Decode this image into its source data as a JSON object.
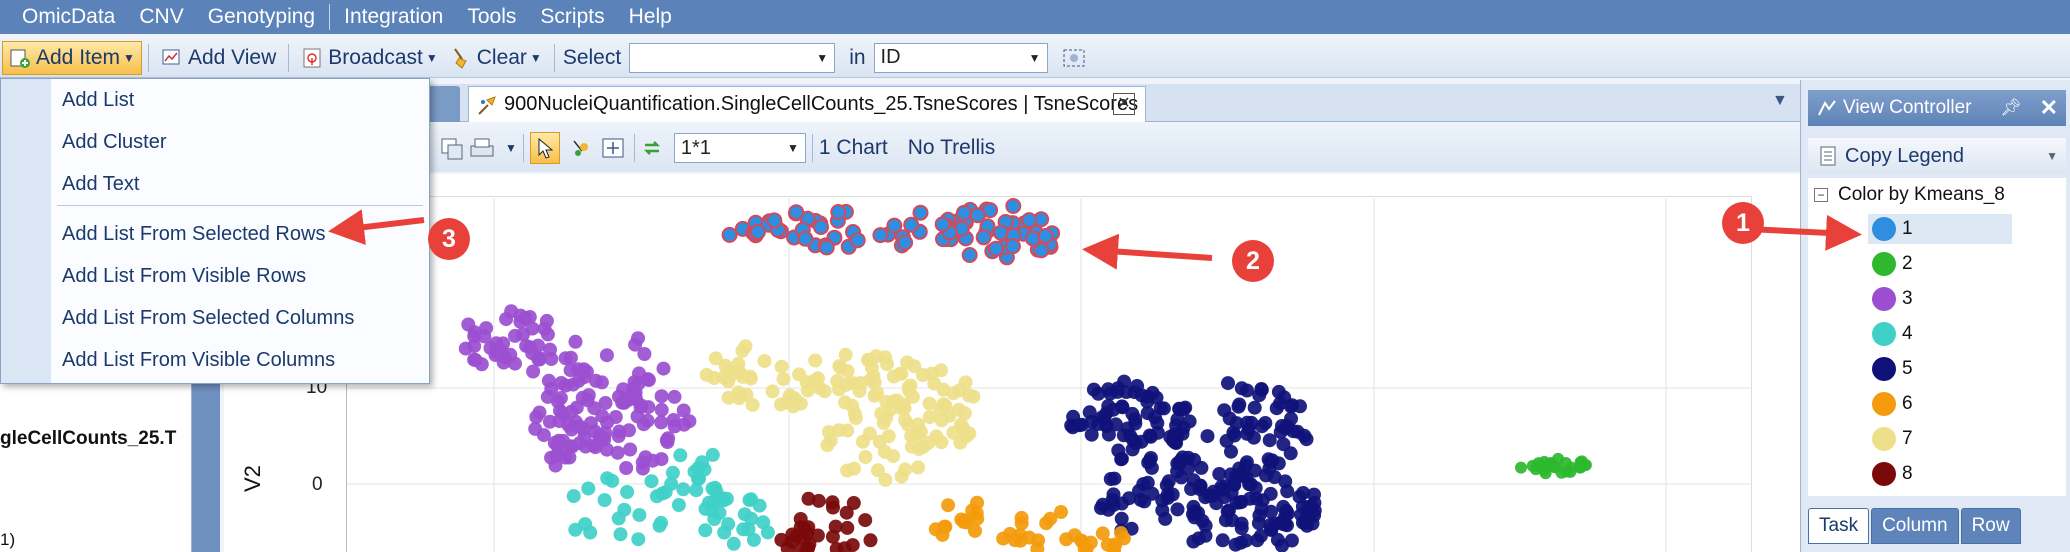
{
  "menubar": {
    "items": [
      "OmicData",
      "CNV",
      "Genotyping",
      "Integration",
      "Tools",
      "Scripts",
      "Help"
    ]
  },
  "toolbar": {
    "add_item": "Add Item",
    "add_view": "Add View",
    "broadcast": "Broadcast",
    "clear": "Clear",
    "select_label": "Select",
    "select_value": "",
    "in_label": "in",
    "in_value": "ID"
  },
  "add_item_menu": {
    "items": [
      "Add List",
      "Add Cluster",
      "Add Text",
      "Add List From Selected Rows",
      "Add List From Visible Rows",
      "Add List From Selected Columns",
      "Add List From Visible Columns"
    ]
  },
  "tab": {
    "title": "900NucleiQuantification.SingleCellCounts_25.TsneScores | TsneScores"
  },
  "chart_toolbar": {
    "layout_value": "1*1",
    "chart_count": "1 Chart",
    "trellis": "No Trellis"
  },
  "left_panel": {
    "node_label": "gleCellCounts_25.T",
    "sub_label": "1)"
  },
  "chart_data": {
    "type": "scatter",
    "ylabel": "V2",
    "yticks": [
      "10",
      "0"
    ],
    "clusters": [
      {
        "name": "1",
        "color": "#2f8ee0",
        "points": 90
      },
      {
        "name": "2",
        "color": "#2eb82e",
        "points": 25
      },
      {
        "name": "3",
        "color": "#9b4fd0",
        "points": 160
      },
      {
        "name": "4",
        "color": "#3fd0c8",
        "points": 60
      },
      {
        "name": "5",
        "color": "#10127a",
        "points": 260
      },
      {
        "name": "6",
        "color": "#f39b0c",
        "points": 40
      },
      {
        "name": "7",
        "color": "#eee08a",
        "points": 140
      },
      {
        "name": "8",
        "color": "#7a0a0a",
        "points": 30
      }
    ]
  },
  "view_controller": {
    "title": "View Controller",
    "copy_legend": "Copy Legend",
    "legend_title": "Color by Kmeans_8",
    "legend": [
      {
        "label": "1",
        "color": "#2f8ee0"
      },
      {
        "label": "2",
        "color": "#2eb82e"
      },
      {
        "label": "3",
        "color": "#9b4fd0"
      },
      {
        "label": "4",
        "color": "#3fd0c8"
      },
      {
        "label": "5",
        "color": "#10127a"
      },
      {
        "label": "6",
        "color": "#f39b0c"
      },
      {
        "label": "7",
        "color": "#eee08a"
      },
      {
        "label": "8",
        "color": "#7a0a0a"
      }
    ],
    "tabs": [
      "Task",
      "Column",
      "Row"
    ]
  },
  "callouts": [
    "1",
    "2",
    "3"
  ]
}
